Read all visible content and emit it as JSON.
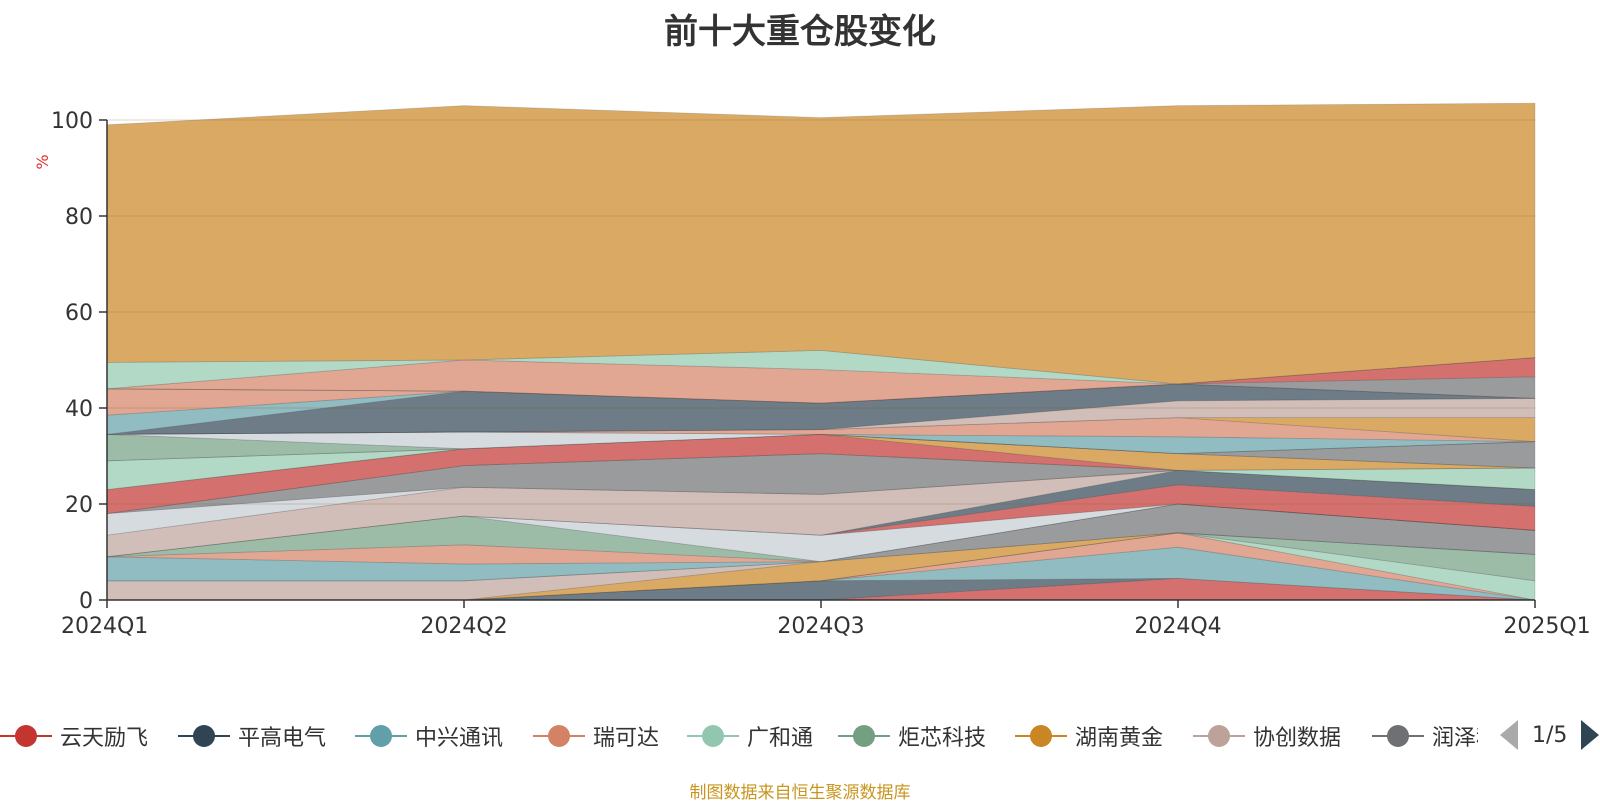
{
  "chart_data": {
    "type": "area",
    "title": "前十大重仓股变化",
    "ylabel": "%",
    "ylim": [
      0,
      100
    ],
    "yticks": [
      "0",
      "20",
      "40",
      "60",
      "80",
      "100"
    ],
    "categories": [
      "2024Q1",
      "2024Q2",
      "2024Q3",
      "2024Q4",
      "2025Q1"
    ],
    "stacked": true,
    "grid": true,
    "series": [
      {
        "name": "云天励飞",
        "color": "#c23531",
        "values": [
          0,
          0,
          0,
          4.5,
          0
        ]
      },
      {
        "name": "平高电气",
        "color": "#2f4554",
        "values": [
          0,
          0,
          4,
          0,
          0
        ]
      },
      {
        "name": "中兴通讯",
        "color": "#61a0a8",
        "values": [
          0,
          0,
          0,
          6.5,
          0
        ]
      },
      {
        "name": "瑞可达",
        "color": "#d48265",
        "values": [
          0,
          0,
          0,
          3,
          0
        ]
      },
      {
        "name": "广和通",
        "color": "#91c7ae",
        "values": [
          0,
          0,
          0,
          0,
          4
        ]
      },
      {
        "name": "炬芯科技",
        "color": "#749f83",
        "values": [
          0,
          0,
          0,
          0,
          5.5
        ]
      },
      {
        "name": "湖南黄金",
        "color": "#ca8622",
        "values": [
          0,
          0,
          4,
          0,
          0
        ]
      },
      {
        "name": "协创数据",
        "color": "#bda29a",
        "values": [
          4,
          4,
          0,
          0,
          0
        ]
      },
      {
        "name": "润泽科技",
        "color": "#6e7074",
        "values": [
          0,
          0,
          0,
          6,
          5
        ]
      },
      {
        "name": "",
        "color": "#61a0a8",
        "values": [
          5,
          3.5,
          0,
          0,
          0
        ]
      },
      {
        "name": "",
        "color": "#d48265",
        "values": [
          0,
          4,
          0,
          0,
          0
        ]
      },
      {
        "name": "",
        "color": "#749f83",
        "values": [
          0,
          6,
          0,
          0,
          0
        ]
      },
      {
        "name": "",
        "color": "#c4ccd3",
        "values": [
          0,
          0,
          5.5,
          0,
          0
        ]
      },
      {
        "name": "",
        "color": "#c23531",
        "values": [
          0,
          0,
          0,
          4,
          5
        ]
      },
      {
        "name": "",
        "color": "#2f4554",
        "values": [
          0,
          0,
          0,
          3,
          3.5
        ]
      },
      {
        "name": "",
        "color": "#bda29a",
        "values": [
          4.5,
          6,
          8.5,
          0,
          0
        ]
      },
      {
        "name": "",
        "color": "#c4ccd3",
        "values": [
          4.5,
          0,
          0,
          0,
          0
        ]
      },
      {
        "name": "",
        "color": "#6e7074",
        "values": [
          0,
          4.5,
          8.5,
          0,
          0
        ]
      },
      {
        "name": "",
        "color": "#91c7ae",
        "values": [
          0,
          0,
          0,
          0,
          4.5
        ]
      },
      {
        "name": "",
        "color": "#c23531",
        "values": [
          5,
          3.5,
          4,
          0,
          0
        ]
      },
      {
        "name": "",
        "color": "#ca8622",
        "values": [
          0,
          0,
          0,
          3.5,
          0
        ]
      },
      {
        "name": "",
        "color": "#91c7ae",
        "values": [
          6,
          0,
          0,
          0,
          0
        ]
      },
      {
        "name": "",
        "color": "#6e7074",
        "values": [
          0,
          0,
          0,
          0,
          5.5
        ]
      },
      {
        "name": "",
        "color": "#749f83",
        "values": [
          5.5,
          0,
          0,
          0,
          0
        ]
      },
      {
        "name": "",
        "color": "#c4ccd3",
        "values": [
          0,
          3.5,
          0,
          0,
          0
        ]
      },
      {
        "name": "",
        "color": "#61a0a8",
        "values": [
          0,
          0,
          0,
          3.5,
          0
        ]
      },
      {
        "name": "",
        "color": "#d48265",
        "values": [
          0,
          0,
          1,
          4,
          0
        ]
      },
      {
        "name": "",
        "color": "#ca8622",
        "values": [
          0,
          0,
          0,
          0,
          5
        ]
      },
      {
        "name": "",
        "color": "#bda29a",
        "values": [
          0,
          0,
          0,
          3.5,
          4
        ]
      },
      {
        "name": "",
        "color": "#2f4554",
        "values": [
          0,
          8.5,
          5.5,
          3.5,
          0
        ]
      },
      {
        "name": "",
        "color": "#61a0a8",
        "values": [
          4,
          0,
          0,
          0,
          0
        ]
      },
      {
        "name": "",
        "color": "#d48265",
        "values": [
          5.5,
          0,
          0,
          0,
          0
        ]
      },
      {
        "name": "",
        "color": "#6e7074",
        "values": [
          0,
          0,
          0,
          0,
          4.5
        ]
      },
      {
        "name": "",
        "color": "#c23531",
        "values": [
          0,
          0,
          0,
          0,
          4
        ]
      },
      {
        "name": "",
        "color": "#d48265",
        "values": [
          0,
          6.5,
          7,
          0,
          0
        ]
      },
      {
        "name": "",
        "color": "#91c7ae",
        "values": [
          5.5,
          0,
          4,
          0,
          0
        ]
      },
      {
        "name": "",
        "color": "#ca8622",
        "values": [
          49.5,
          53,
          48.5,
          58,
          53
        ]
      }
    ]
  },
  "legend": {
    "items": [
      {
        "label": "云天励飞",
        "color": "#c23531"
      },
      {
        "label": "平高电气",
        "color": "#2f4554"
      },
      {
        "label": "中兴通讯",
        "color": "#61a0a8"
      },
      {
        "label": "瑞可达",
        "color": "#d48265"
      },
      {
        "label": "广和通",
        "color": "#91c7ae"
      },
      {
        "label": "炬芯科技",
        "color": "#749f83"
      },
      {
        "label": "湖南黄金",
        "color": "#ca8622"
      },
      {
        "label": "协创数据",
        "color": "#bda29a"
      },
      {
        "label": "润泽科技",
        "color": "#6e7074"
      }
    ],
    "page_text": "1/5"
  },
  "source_note": "制图数据来自恒生聚源数据库"
}
